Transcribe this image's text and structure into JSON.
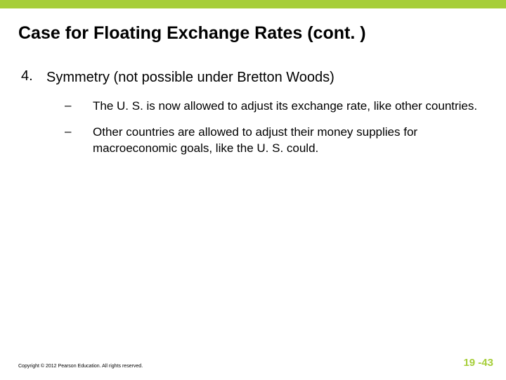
{
  "accent_color": "#a6ce39",
  "slide_number_color": "#a6ce39",
  "title": "Case for Floating Exchange Rates (cont. )",
  "list": {
    "number": "4.",
    "text": "Symmetry (not possible under Bretton Woods)",
    "sub": [
      {
        "dash": "–",
        "text": "The U. S. is now allowed to adjust its exchange rate, like other countries."
      },
      {
        "dash": "–",
        "text": "Other countries are allowed to adjust their money supplies for macroeconomic goals, like the U. S. could."
      }
    ]
  },
  "footer": "Copyright © 2012 Pearson Education. All rights reserved.",
  "slide_number": "19 -43"
}
